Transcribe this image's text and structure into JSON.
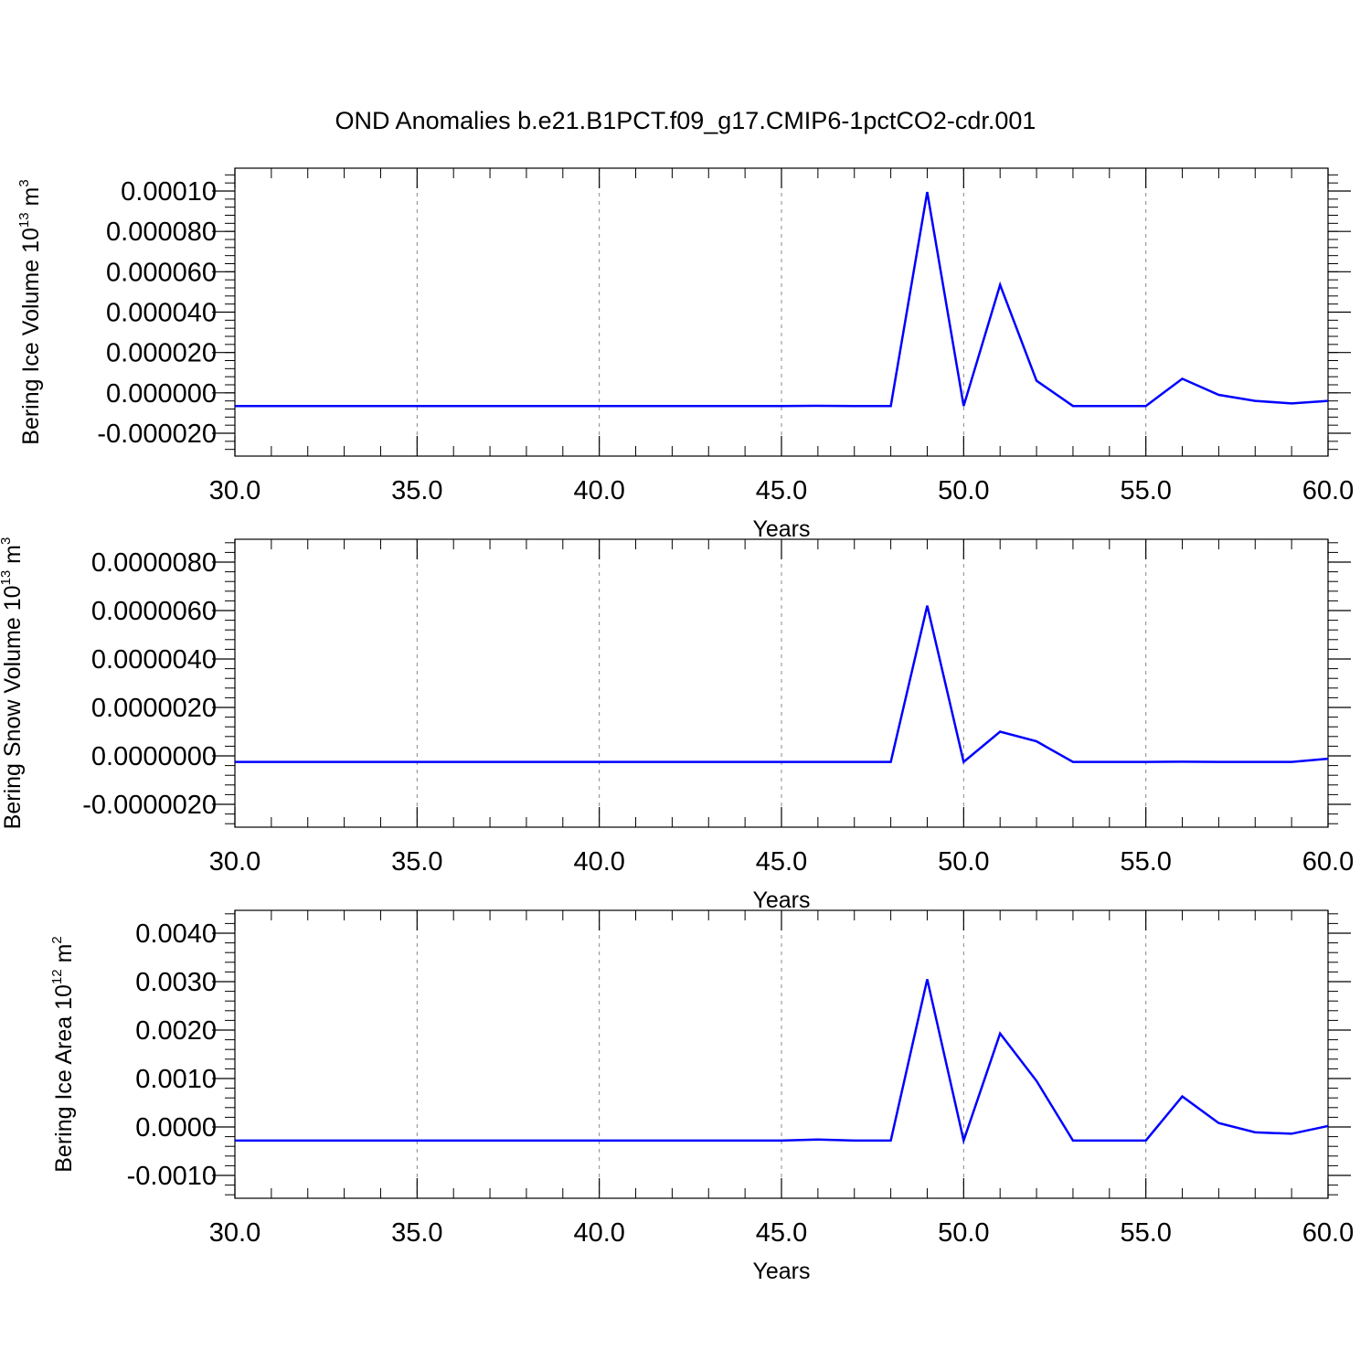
{
  "title": "OND Anomalies b.e21.B1PCT.f09_g17.CMIP6-1pctCO2-cdr.001",
  "colors": {
    "line": "#0000ff",
    "axis": "#000000",
    "grid": "#888888"
  },
  "chart_data": [
    {
      "type": "line",
      "ylabel": "Bering Ice Volume 10",
      "ylabel_sup": "13",
      "ylabel_unit": " m",
      "ylabel_unit_sup": "3",
      "xlabel": "Years",
      "xlim": [
        30,
        60
      ],
      "ylim": [
        -2e-05,
        0.0001
      ],
      "xticks": [
        30,
        35,
        40,
        45,
        50,
        55,
        60
      ],
      "xtick_labels": [
        "30.0",
        "35.0",
        "40.0",
        "45.0",
        "50.0",
        "55.0",
        "60.0"
      ],
      "yticks": [
        -2e-05,
        0.0,
        2e-05,
        4e-05,
        6e-05,
        8e-05,
        0.0001
      ],
      "ytick_labels": [
        "-0.000020",
        "0.000000",
        "0.000020",
        "0.000040",
        "0.000060",
        "0.000080",
        "0.00010"
      ],
      "grid": "dashed vertical at major x ticks",
      "series": [
        {
          "x": [
            30,
            31,
            32,
            33,
            34,
            35,
            36,
            37,
            38,
            39,
            40,
            41,
            42,
            43,
            44,
            45,
            46,
            47,
            48,
            49,
            50,
            51,
            52,
            53,
            54,
            55,
            56,
            57,
            58,
            59,
            60
          ],
          "values": [
            -6.5e-06,
            -6.5e-06,
            -6.5e-06,
            -6.5e-06,
            -6.5e-06,
            -6.5e-06,
            -6.5e-06,
            -6.5e-06,
            -6.5e-06,
            -6.5e-06,
            -6.5e-06,
            -6.5e-06,
            -6.5e-06,
            -6.5e-06,
            -6.5e-06,
            -6.5e-06,
            -6.4e-06,
            -6.5e-06,
            -6.5e-06,
            9.95e-05,
            -6.5e-06,
            5.35e-05,
            6e-06,
            -6.5e-06,
            -6.5e-06,
            -6.5e-06,
            7e-06,
            -1e-06,
            -4e-06,
            -5.2e-06,
            -4e-06
          ]
        }
      ]
    },
    {
      "type": "line",
      "ylabel": "Bering Snow Volume 10",
      "ylabel_sup": "13",
      "ylabel_unit": " m",
      "ylabel_unit_sup": "3",
      "xlabel": "Years",
      "xlim": [
        30,
        60
      ],
      "ylim": [
        -2e-06,
        8e-06
      ],
      "xticks": [
        30,
        35,
        40,
        45,
        50,
        55,
        60
      ],
      "xtick_labels": [
        "30.0",
        "35.0",
        "40.0",
        "45.0",
        "50.0",
        "55.0",
        "60.0"
      ],
      "yticks": [
        -2e-06,
        0.0,
        2e-06,
        4e-06,
        6e-06,
        8e-06
      ],
      "ytick_labels": [
        "-0.0000020",
        "0.0000000",
        "0.0000020",
        "0.0000040",
        "0.0000060",
        "0.0000080"
      ],
      "grid": "dashed vertical at major x ticks",
      "series": [
        {
          "x": [
            30,
            31,
            32,
            33,
            34,
            35,
            36,
            37,
            38,
            39,
            40,
            41,
            42,
            43,
            44,
            45,
            46,
            47,
            48,
            49,
            50,
            51,
            52,
            53,
            54,
            55,
            56,
            57,
            58,
            59,
            60
          ],
          "values": [
            -2.5e-07,
            -2.5e-07,
            -2.5e-07,
            -2.5e-07,
            -2.5e-07,
            -2.5e-07,
            -2.5e-07,
            -2.5e-07,
            -2.5e-07,
            -2.5e-07,
            -2.5e-07,
            -2.5e-07,
            -2.5e-07,
            -2.5e-07,
            -2.5e-07,
            -2.5e-07,
            -2.5e-07,
            -2.5e-07,
            -2.5e-07,
            6.2e-06,
            -2.5e-07,
            1e-06,
            6e-07,
            -2.5e-07,
            -2.5e-07,
            -2.5e-07,
            -2.4e-07,
            -2.5e-07,
            -2.5e-07,
            -2.5e-07,
            -1.2e-07
          ]
        }
      ]
    },
    {
      "type": "line",
      "ylabel": "Bering Ice Area 10",
      "ylabel_sup": "12",
      "ylabel_unit": " m",
      "ylabel_unit_sup": "2",
      "xlabel": "Years",
      "xlim": [
        30,
        60
      ],
      "ylim": [
        -0.001,
        0.004
      ],
      "xticks": [
        30,
        35,
        40,
        45,
        50,
        55,
        60
      ],
      "xtick_labels": [
        "30.0",
        "35.0",
        "40.0",
        "45.0",
        "50.0",
        "55.0",
        "60.0"
      ],
      "yticks": [
        -0.001,
        0.0,
        0.001,
        0.002,
        0.003,
        0.004
      ],
      "ytick_labels": [
        "-0.0010",
        "0.0000",
        "0.0010",
        "0.0020",
        "0.0030",
        "0.0040"
      ],
      "grid": "dashed vertical at major x ticks",
      "series": [
        {
          "x": [
            30,
            31,
            32,
            33,
            34,
            35,
            36,
            37,
            38,
            39,
            40,
            41,
            42,
            43,
            44,
            45,
            46,
            47,
            48,
            49,
            50,
            51,
            52,
            53,
            54,
            55,
            56,
            57,
            58,
            59,
            60
          ],
          "values": [
            -0.00028,
            -0.00028,
            -0.00028,
            -0.00028,
            -0.00028,
            -0.00028,
            -0.00028,
            -0.00028,
            -0.00028,
            -0.00028,
            -0.00028,
            -0.00028,
            -0.00028,
            -0.00028,
            -0.00028,
            -0.00028,
            -0.00026,
            -0.00028,
            -0.00028,
            0.00305,
            -0.00028,
            0.00193,
            0.00095,
            -0.00028,
            -0.00028,
            -0.00028,
            0.00063,
            8e-05,
            -0.00011,
            -0.00014,
            2e-05
          ]
        }
      ]
    }
  ]
}
